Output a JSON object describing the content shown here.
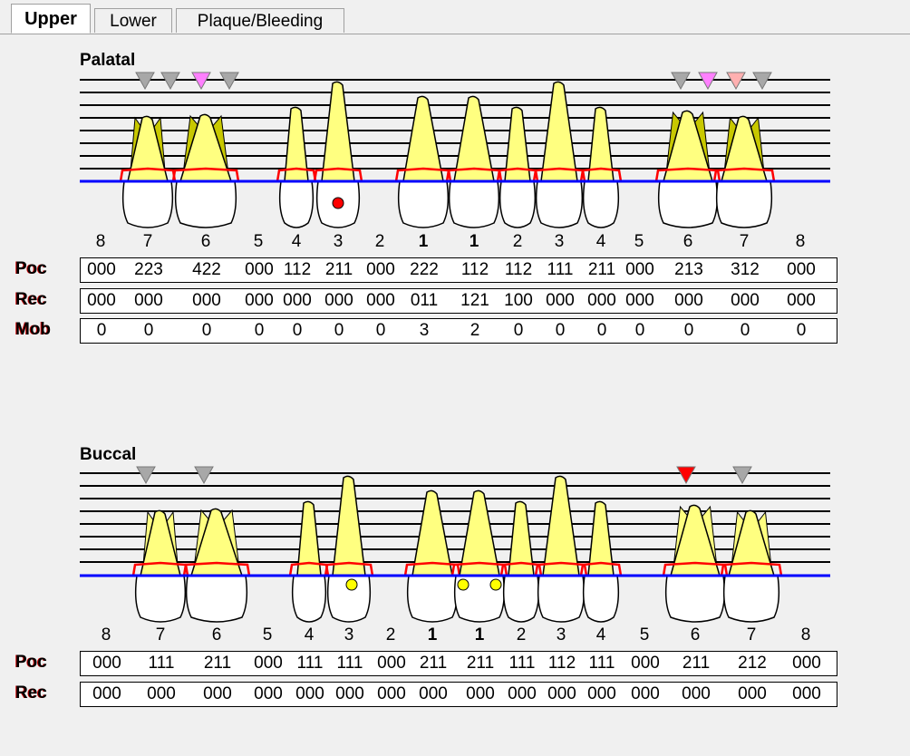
{
  "tabs": [
    {
      "label": "Upper",
      "selected": true
    },
    {
      "label": "Lower"
    },
    {
      "label": "Plaque/Bleeding"
    }
  ],
  "palatal": {
    "title": "Palatal",
    "teeth": [
      "8",
      "7",
      "6",
      "5",
      "4",
      "3",
      "2",
      "1",
      "1",
      "2",
      "3",
      "4",
      "5",
      "6",
      "7",
      "8"
    ],
    "present": [
      false,
      true,
      true,
      false,
      true,
      true,
      false,
      true,
      true,
      true,
      true,
      true,
      false,
      true,
      true,
      false
    ],
    "rows": [
      {
        "label": "Poc",
        "values": [
          "000",
          "223",
          "422",
          "000",
          "112",
          "211",
          "000",
          "222",
          "112",
          "112",
          "111",
          "211",
          "000",
          "213",
          "312",
          "000"
        ]
      },
      {
        "label": "Rec",
        "values": [
          "000",
          "000",
          "000",
          "000",
          "000",
          "000",
          "000",
          "011",
          "121",
          "100",
          "000",
          "000",
          "000",
          "000",
          "000",
          "000"
        ]
      },
      {
        "label": "Mob",
        "values": [
          "0",
          "0",
          "0",
          "0",
          "0",
          "0",
          "0",
          "3",
          "2",
          "0",
          "0",
          "0",
          "0",
          "0",
          "0",
          "0"
        ]
      }
    ],
    "markers": [
      "#a8a8a8",
      "#a8a8a8",
      "#ff80ff",
      "#a8a8a8",
      "#a8a8a8",
      "#ff80ff",
      "#ffb0b0",
      "#a8a8a8"
    ],
    "dots": [
      {
        "tooth": 5,
        "color": "#ff0000"
      }
    ]
  },
  "buccal": {
    "title": "Buccal",
    "teeth": [
      "8",
      "7",
      "6",
      "5",
      "4",
      "3",
      "2",
      "1",
      "1",
      "2",
      "3",
      "4",
      "5",
      "6",
      "7",
      "8"
    ],
    "present": [
      false,
      true,
      true,
      false,
      true,
      true,
      false,
      true,
      true,
      true,
      true,
      true,
      false,
      true,
      true,
      false
    ],
    "rows": [
      {
        "label": "Poc",
        "values": [
          "000",
          "111",
          "211",
          "000",
          "111",
          "111",
          "000",
          "211",
          "211",
          "111",
          "112",
          "111",
          "000",
          "211",
          "212",
          "000"
        ]
      },
      {
        "label": "Rec",
        "values": [
          "000",
          "000",
          "000",
          "000",
          "000",
          "000",
          "000",
          "000",
          "000",
          "000",
          "000",
          "000",
          "000",
          "000",
          "000",
          "000"
        ]
      }
    ],
    "markers": [
      "#a8a8a8",
      "#a8a8a8",
      "#ff0000",
      "#a8a8a8"
    ],
    "dots": [
      {
        "tooth": 5,
        "color": "#ffff00"
      },
      {
        "tooth": 8,
        "color": "#ffff00"
      },
      {
        "tooth": 8,
        "color": "#ffff00"
      }
    ]
  },
  "colors": {
    "gingiva": "#ff0000",
    "bone": "#0000ff",
    "root": "#ffff80",
    "crown": "#ffffff"
  }
}
